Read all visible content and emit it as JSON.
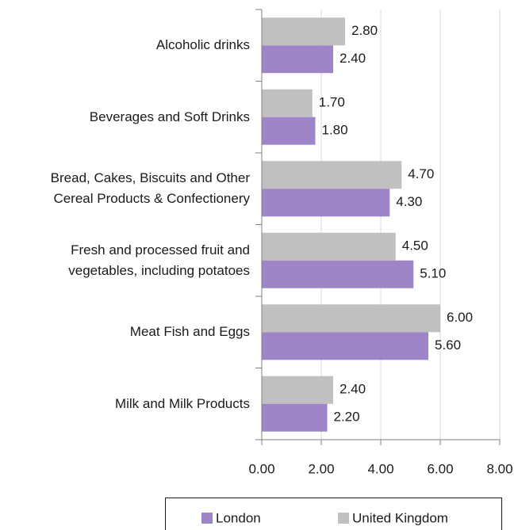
{
  "chart_data": {
    "type": "hbar",
    "categories": [
      "Alcoholic drinks",
      "Beverages and Soft Drinks",
      "Bread, Cakes, Biscuits and Other\nCereal Products & Confectionery",
      "Fresh and processed fruit and\nvegetables, including potatoes",
      "Meat Fish and Eggs",
      "Milk and Milk Products"
    ],
    "series": [
      {
        "name": "London",
        "color": "#9d85c8",
        "values": [
          2.4,
          1.8,
          4.3,
          5.1,
          5.6,
          2.2
        ],
        "value_labels": [
          "2.40",
          "1.80",
          "4.30",
          "5.10",
          "5.60",
          "2.20"
        ]
      },
      {
        "name": "United Kingdom",
        "color": "#c0c0c0",
        "values": [
          2.8,
          1.7,
          4.7,
          4.5,
          6.0,
          2.4
        ],
        "value_labels": [
          "2.80",
          "1.70",
          "4.70",
          "4.50",
          "6.00",
          "2.40"
        ]
      }
    ],
    "xlim": [
      0,
      8
    ],
    "xticks": [
      {
        "value": 0,
        "label": "0.00"
      },
      {
        "value": 2,
        "label": "2.00"
      },
      {
        "value": 4,
        "label": "4.00"
      },
      {
        "value": 6,
        "label": "6.00"
      },
      {
        "value": 8,
        "label": "8.00"
      }
    ],
    "grid": true,
    "legend": "bottom"
  }
}
